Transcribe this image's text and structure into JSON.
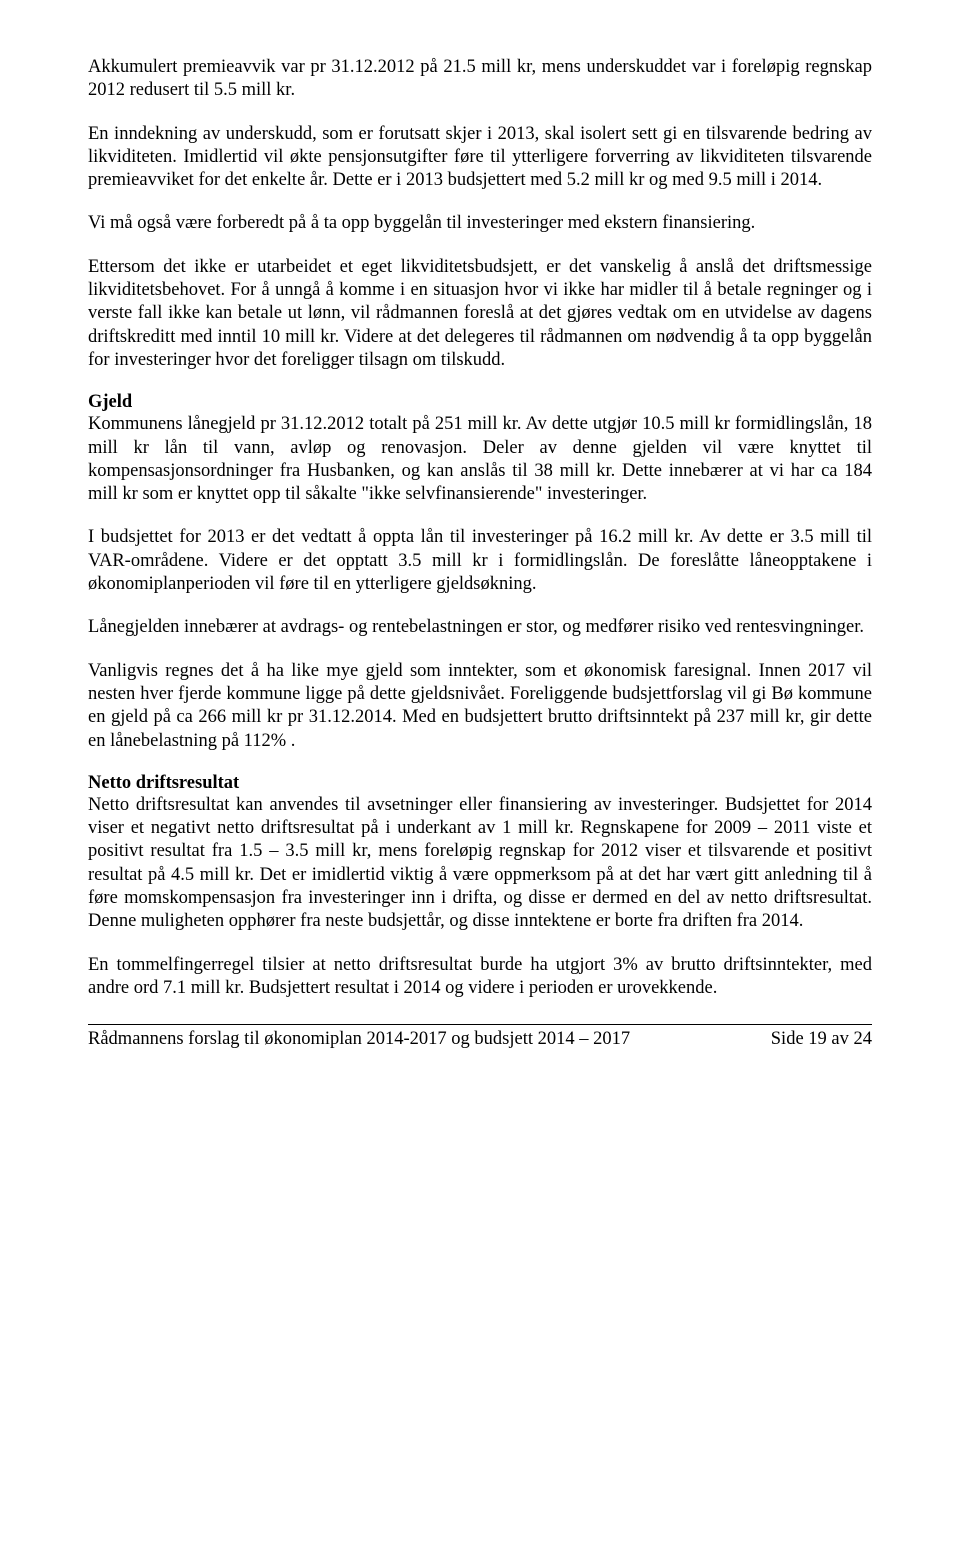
{
  "p1": "Akkumulert premieavvik var pr 31.12.2012 på 21.5 mill kr, mens underskuddet var i foreløpig regnskap 2012 redusert til 5.5 mill kr.",
  "p2": "En inndekning av underskudd, som er forutsatt skjer i 2013, skal isolert sett gi en tilsvarende bedring av likviditeten. Imidlertid vil økte pensjonsutgifter føre til ytterligere forverring av likviditeten tilsvarende premieavviket for det enkelte år. Dette er i 2013 budsjettert med 5.2 mill kr og med 9.5 mill i 2014.",
  "p3": "Vi må også være forberedt på å ta opp byggelån til investeringer med ekstern finansiering.",
  "p4": "Ettersom det ikke er utarbeidet et eget likviditetsbudsjett, er det vanskelig å anslå det driftsmessige likviditetsbehovet. For å unngå å komme i en situasjon hvor vi ikke har midler til å betale regninger og i verste fall ikke kan betale ut lønn, vil rådmannen foreslå at det gjøres vedtak om en utvidelse av dagens driftskreditt med inntil 10 mill kr. Videre at det delegeres til rådmannen om nødvendig å ta opp byggelån for investeringer hvor det foreligger tilsagn om tilskudd.",
  "h_gjeld": "Gjeld",
  "p5": "Kommunens lånegjeld pr 31.12.2012 totalt på 251 mill kr. Av dette utgjør 10.5 mill kr formidlingslån, 18 mill kr lån til vann, avløp og renovasjon. Deler av denne gjelden vil være knyttet til kompensasjonsordninger fra Husbanken, og kan anslås til 38 mill kr. Dette innebærer at vi har ca 184 mill kr som er knyttet opp til såkalte \"ikke selvfinansierende\" investeringer.",
  "p6": "I budsjettet for 2013 er det vedtatt å oppta lån til investeringer på 16.2 mill kr. Av dette er 3.5 mill til VAR-områdene. Videre er det opptatt 3.5 mill kr i formidlingslån. De foreslåtte låneopptakene i økonomiplanperioden vil føre til en ytterligere gjeldsøkning.",
  "p7": "Lånegjelden innebærer at avdrags- og rentebelastningen er stor, og medfører risiko ved rentesvingninger.",
  "p8": "Vanligvis regnes det å ha like mye gjeld som inntekter, som et økonomisk faresignal. Innen 2017 vil nesten hver fjerde kommune ligge på dette gjeldsnivået. Foreliggende budsjettforslag vil gi Bø kommune en gjeld på ca 266 mill kr pr 31.12.2014. Med en budsjettert brutto driftsinntekt på 237 mill kr, gir dette en lånebelastning på 112% .",
  "h_netto": "Netto driftsresultat",
  "p9": "Netto driftsresultat kan anvendes til avsetninger eller finansiering av investeringer. Budsjettet for 2014 viser et negativt netto driftsresultat på i underkant av 1 mill kr. Regnskapene for 2009 – 2011 viste et positivt resultat fra 1.5 – 3.5 mill kr, mens foreløpig regnskap for 2012 viser et tilsvarende et positivt resultat på 4.5 mill kr. Det er imidlertid viktig å være oppmerksom på at det har vært gitt anledning til å føre momskompensasjon fra investeringer inn i drifta, og disse er dermed en del av netto driftsresultat. Denne muligheten opphører fra neste budsjettår, og disse inntektene er borte fra driften fra 2014.",
  "p10": "En tommelfingerregel tilsier at netto driftsresultat burde ha utgjort 3% av brutto driftsinntekter, med andre ord 7.1 mill kr. Budsjettert resultat i 2014 og videre i perioden er urovekkende.",
  "footer_left": "Rådmannens forslag til økonomiplan 2014-2017 og budsjett 2014 – 2017",
  "footer_right": "Side 19 av 24"
}
